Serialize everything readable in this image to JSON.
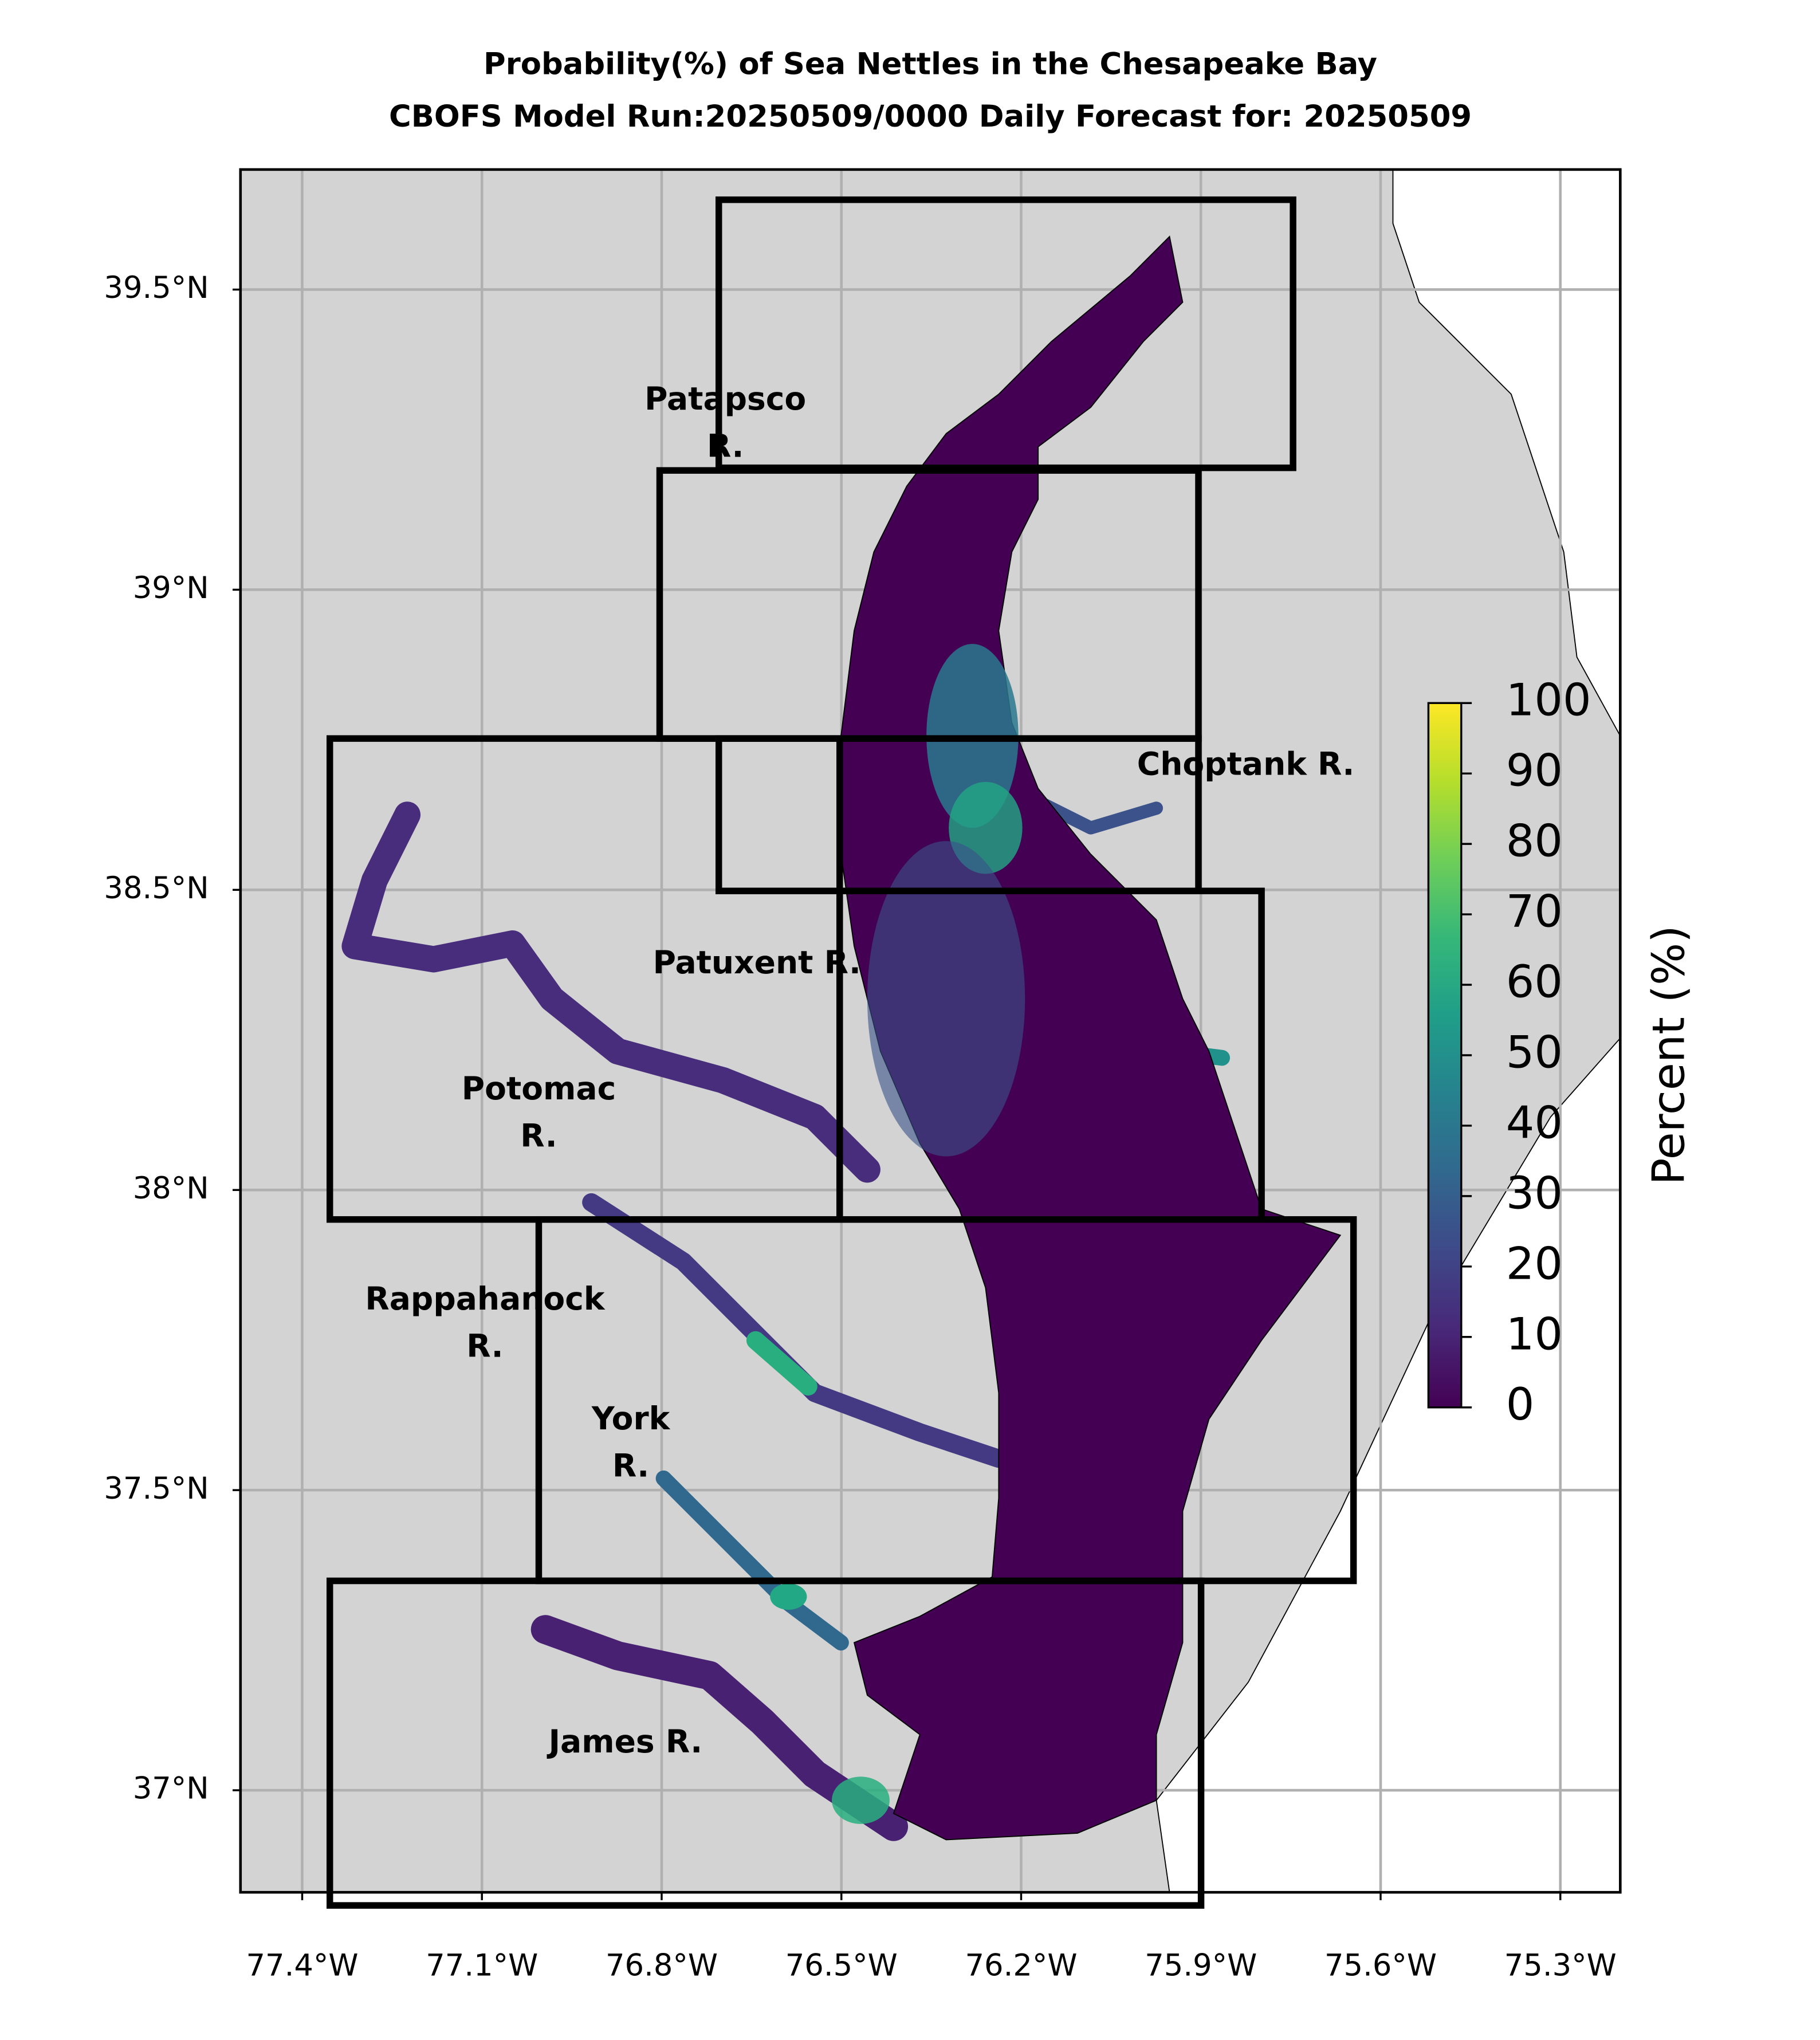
{
  "map": {
    "title": "Probability(%) of Sea Nettles in the Chesapeake Bay",
    "subtitle": "CBOFS Model Run:20250509/0000 Daily Forecast for: 20250509",
    "xlim": [
      -77.503,
      -75.2
    ],
    "ylim": [
      36.83,
      39.7
    ],
    "xticks": [
      {
        "value": -77.4,
        "label": "77.4°W"
      },
      {
        "value": -77.1,
        "label": "77.1°W"
      },
      {
        "value": -76.8,
        "label": "76.8°W"
      },
      {
        "value": -76.5,
        "label": "76.5°W"
      },
      {
        "value": -76.2,
        "label": "76.2°W"
      },
      {
        "value": -75.9,
        "label": "75.9°W"
      },
      {
        "value": -75.6,
        "label": "75.6°W"
      },
      {
        "value": -75.3,
        "label": "75.3°W"
      }
    ],
    "yticks": [
      {
        "value": 37,
        "label": "37°N"
      },
      {
        "value": 37.5,
        "label": "37.5°N"
      },
      {
        "value": 38,
        "label": "38°N"
      },
      {
        "value": 38.5,
        "label": "38.5°N"
      },
      {
        "value": 39,
        "label": "39°N"
      },
      {
        "value": 39.5,
        "label": "39.5°N"
      }
    ],
    "grid": true,
    "region_labels": [
      [
        "Patapsco",
        "R."
      ],
      [
        "Choptank R."
      ],
      [
        "Patuxent R."
      ],
      [
        "Potomac",
        "R."
      ],
      [
        "Rappahanock",
        "R."
      ],
      [
        "York",
        "R."
      ],
      [
        "James R."
      ]
    ]
  },
  "colorbar": {
    "label": "Percent (%)",
    "lim": [
      0,
      100
    ],
    "ticks": [
      0,
      10,
      20,
      30,
      40,
      50,
      60,
      70,
      80,
      90,
      100
    ],
    "colormap": "viridis"
  }
}
